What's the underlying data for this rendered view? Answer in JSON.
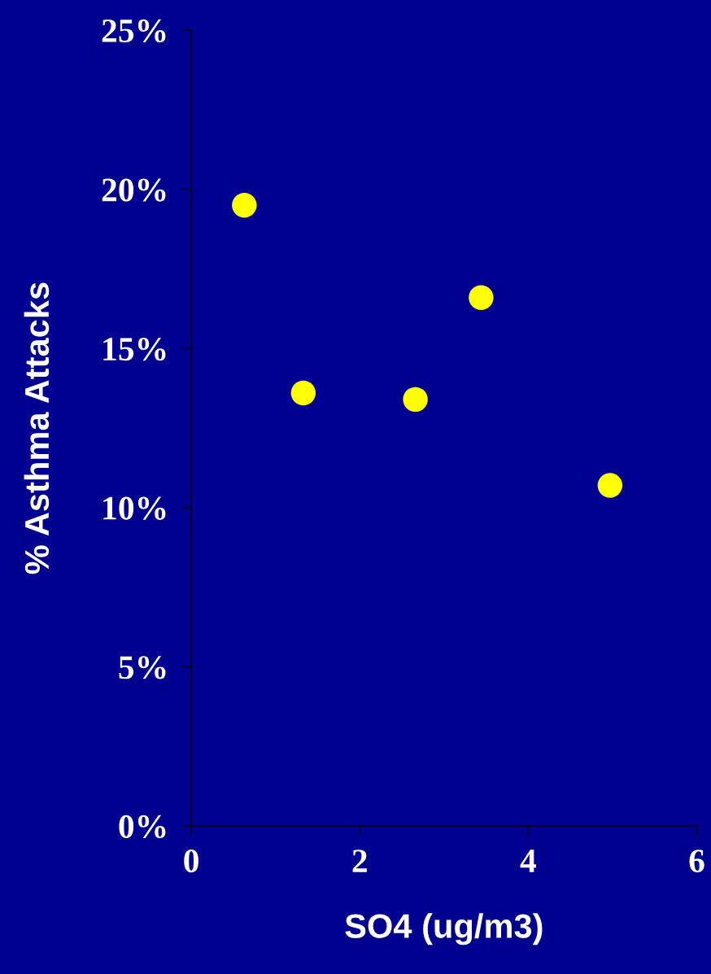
{
  "chart_data": {
    "type": "scatter",
    "xlabel": "SO4 (ug/m3)",
    "ylabel": "% Asthma Attacks",
    "x": [
      0.63,
      1.33,
      2.66,
      3.44,
      4.97
    ],
    "values": [
      19.5,
      13.6,
      13.4,
      16.6,
      10.7
    ],
    "color": "#ffff00",
    "marker": "circle",
    "grid": false,
    "xlim": [
      0,
      6
    ],
    "xticks": [
      0,
      2,
      4,
      6
    ],
    "ylim": [
      0,
      25
    ],
    "yticks": [
      {
        "value": 0,
        "label": "0%"
      },
      {
        "value": 5,
        "label": "5%"
      },
      {
        "value": 10,
        "label": "10%"
      },
      {
        "value": 15,
        "label": "15%"
      },
      {
        "value": 20,
        "label": "20%"
      },
      {
        "value": 25,
        "label": "25%"
      }
    ]
  }
}
